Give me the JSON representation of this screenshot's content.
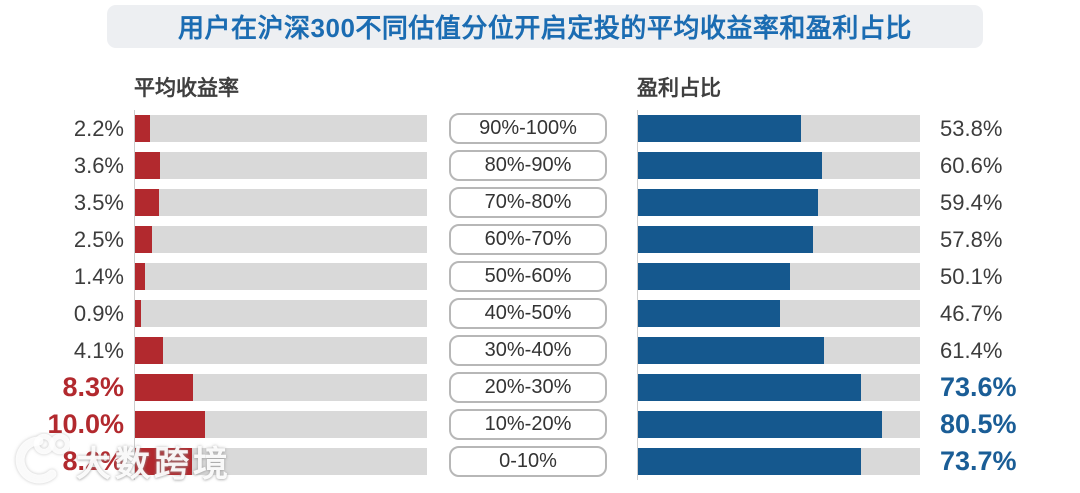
{
  "title": "用户在沪深300不同估值分位开启定投的平均收益率和盈利占比",
  "left_header": "平均收益率",
  "right_header": "盈利占比",
  "watermark_text": "大数跨境",
  "colors": {
    "title_blue": "#1b6cb2",
    "accent_red": "#b2292e",
    "accent_blue": "#15588e",
    "accent_blue_text": "#1a5d96",
    "track_gray": "#d9d9d9"
  },
  "chart_data": {
    "type": "bar",
    "orientation": "horizontal",
    "title": "用户在沪深300不同估值分位开启定投的平均收益率和盈利占比",
    "categories": [
      "90%-100%",
      "80%-90%",
      "70%-80%",
      "60%-70%",
      "50%-60%",
      "40%-50%",
      "30%-40%",
      "20%-30%",
      "10%-20%",
      "0-10%"
    ],
    "series": [
      {
        "name": "平均收益率",
        "unit": "%",
        "color": "#b2292e",
        "scale_max": 42,
        "values": [
          2.2,
          3.6,
          3.5,
          2.5,
          1.4,
          0.9,
          4.1,
          8.3,
          10.0,
          8.2
        ]
      },
      {
        "name": "盈利占比",
        "unit": "%",
        "color": "#15588e",
        "scale_max": 93,
        "values": [
          53.8,
          60.6,
          59.4,
          57.8,
          50.1,
          46.7,
          61.4,
          73.6,
          80.5,
          73.7
        ]
      }
    ],
    "highlighted_categories": [
      "20%-30%",
      "10%-20%",
      "0-10%"
    ],
    "legend_position": "column-headers",
    "grid": false,
    "rows": [
      {
        "range": "90%-100%",
        "avg_return_label": "2.2%",
        "profit_label": "53.8%",
        "emphasized": false
      },
      {
        "range": "80%-90%",
        "avg_return_label": "3.6%",
        "profit_label": "60.6%",
        "emphasized": false
      },
      {
        "range": "70%-80%",
        "avg_return_label": "3.5%",
        "profit_label": "59.4%",
        "emphasized": false
      },
      {
        "range": "60%-70%",
        "avg_return_label": "2.5%",
        "profit_label": "57.8%",
        "emphasized": false
      },
      {
        "range": "50%-60%",
        "avg_return_label": "1.4%",
        "profit_label": "50.1%",
        "emphasized": false
      },
      {
        "range": "40%-50%",
        "avg_return_label": "0.9%",
        "profit_label": "46.7%",
        "emphasized": false
      },
      {
        "range": "30%-40%",
        "avg_return_label": "4.1%",
        "profit_label": "61.4%",
        "emphasized": false
      },
      {
        "range": "20%-30%",
        "avg_return_label": "8.3%",
        "profit_label": "73.6%",
        "emphasized": true
      },
      {
        "range": "10%-20%",
        "avg_return_label": "10.0%",
        "profit_label": "80.5%",
        "emphasized": true
      },
      {
        "range": "0-10%",
        "avg_return_label": "8.2%",
        "profit_label": "73.7%",
        "emphasized": true
      }
    ]
  }
}
